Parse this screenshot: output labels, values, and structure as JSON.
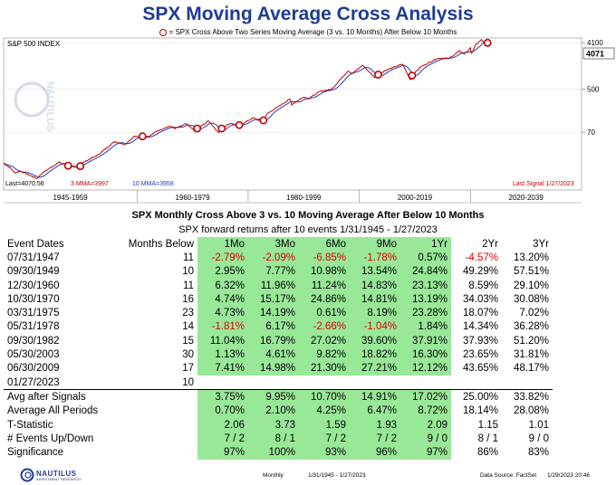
{
  "title": "SPX Moving Average Cross Analysis",
  "legend_text": "= SPX  Cross Above Two Series Moving Average (3 vs. 10 Months) After Below 10 Months",
  "panel_label": "S&P 500 INDEX",
  "last_value_box": "4071",
  "bottom_left_text": "Last=4070.56",
  "mma3_text": "3 MMA=3997",
  "mma10_text": "10 MMA=3958",
  "last_signal_text": "Last Signal 1/27/2023",
  "watermark": "NAUTILUS",
  "colors": {
    "title": "#1f3c93",
    "price": "#c00000",
    "ma": "#1f3cbb",
    "signal": "#c00000",
    "highlight": "#98e898",
    "negative": "#e00000"
  },
  "chart_data": {
    "type": "line",
    "y_scale": "log",
    "y_ticks": [
      "70",
      "500",
      "4100"
    ],
    "x_ticks": [
      "1945-1959",
      "1960-1979",
      "1980-1999",
      "2000-2019",
      "2020-2039"
    ],
    "x_range": [
      1936,
      2040
    ],
    "y_range": [
      9,
      4300
    ],
    "series": [
      {
        "x": [
          1936,
          1937.2,
          1938,
          1939,
          1942,
          1943,
          1946,
          1947.5,
          1949,
          1950,
          1953,
          1956,
          1957.8,
          1959.5,
          1960.9,
          1962.4,
          1963,
          1966,
          1966.8,
          1968.9,
          1970.4,
          1972.9,
          1974.7,
          1975.2,
          1976.9,
          1978.2,
          1980.9,
          1982.5,
          1983.5,
          1987.6,
          1987.8,
          1990,
          1990.8,
          1993,
          1995,
          1998,
          1998.7,
          2000.6,
          2002.8,
          2003.4,
          2004.5,
          2007.8,
          2009.2,
          2009.5,
          2011,
          2014,
          2015.6,
          2016,
          2018,
          2018.9,
          2020,
          2020.2,
          2021,
          2022,
          2022.8,
          2023.1
        ],
        "values": [
          17,
          14,
          11,
          12,
          8.5,
          11,
          18,
          15,
          14,
          17,
          25,
          46,
          40,
          58,
          55,
          59,
          68,
          92,
          82,
          104,
          75,
          118,
          68,
          84,
          106,
          92,
          135,
          110,
          164,
          320,
          245,
          350,
          320,
          450,
          490,
          1150,
          1000,
          1470,
          840,
          920,
          1140,
          1550,
          750,
          920,
          1350,
          2000,
          2050,
          1950,
          2800,
          2450,
          3200,
          2500,
          3750,
          4700,
          3700,
          4070
        ]
      }
    ],
    "signals": [
      {
        "x": 1947.6,
        "y": 15.3
      },
      {
        "x": 1949.8,
        "y": 15
      },
      {
        "x": 1960.99,
        "y": 58
      },
      {
        "x": 1970.83,
        "y": 83
      },
      {
        "x": 1975.25,
        "y": 83
      },
      {
        "x": 1978.4,
        "y": 97
      },
      {
        "x": 1982.75,
        "y": 120
      },
      {
        "x": 2003.4,
        "y": 960
      },
      {
        "x": 2009.5,
        "y": 920
      },
      {
        "x": 2023.08,
        "y": 4071
      }
    ]
  },
  "table": {
    "subtitle1": "SPX Monthly Cross Above 3 vs. 10  Moving Average After Below 10 Months",
    "subtitle2": "SPX forward returns after 10 events 1/31/1945 - 1/27/2023",
    "headers": [
      "Event Dates",
      "Months Below",
      "1Mo",
      "3Mo",
      "6Mo",
      "9Mo",
      "1Yr",
      "2Yr",
      "3Yr"
    ],
    "rows": [
      [
        "07/31/1947",
        "11",
        "-2.79%",
        "-2.09%",
        "-6.85%",
        "-1.78%",
        "0.57%",
        "-4.57%",
        "13.20%"
      ],
      [
        "09/30/1949",
        "10",
        "2.95%",
        "7.77%",
        "10.98%",
        "13.54%",
        "24.84%",
        "49.29%",
        "57.51%"
      ],
      [
        "12/30/1960",
        "11",
        "6.32%",
        "11.96%",
        "11.24%",
        "14.83%",
        "23.13%",
        "8.59%",
        "29.10%"
      ],
      [
        "10/30/1970",
        "16",
        "4.74%",
        "15.17%",
        "24.86%",
        "14.81%",
        "13.19%",
        "34.03%",
        "30.08%"
      ],
      [
        "03/31/1975",
        "23",
        "4.73%",
        "14.19%",
        "0.61%",
        "8.19%",
        "23.28%",
        "18.07%",
        "7.02%"
      ],
      [
        "05/31/1978",
        "14",
        "-1.81%",
        "6.17%",
        "-2.66%",
        "-1.04%",
        "1.84%",
        "14.34%",
        "36.28%"
      ],
      [
        "09/30/1982",
        "15",
        "11.04%",
        "16.79%",
        "27.02%",
        "39.60%",
        "37.91%",
        "37.93%",
        "51.20%"
      ],
      [
        "05/30/2003",
        "30",
        "1.13%",
        "4.61%",
        "9.82%",
        "18.82%",
        "16.30%",
        "23.65%",
        "31.81%"
      ],
      [
        "06/30/2009",
        "17",
        "7.41%",
        "14.98%",
        "21.30%",
        "27.21%",
        "12.12%",
        "43.65%",
        "48.17%"
      ],
      [
        "01/27/2023",
        "10",
        "",
        "",
        "",
        "",
        "",
        "",
        ""
      ]
    ],
    "summary": [
      [
        "Avg after Signals",
        "",
        "3.75%",
        "9.95%",
        "10.70%",
        "14.91%",
        "17.02%",
        "25.00%",
        "33.82%"
      ],
      [
        "Average All Periods",
        "",
        "0.70%",
        "2.10%",
        "4.25%",
        "6.47%",
        "8.72%",
        "18.14%",
        "28.08%"
      ],
      [
        "T-Statistic",
        "",
        "2.06",
        "3.73",
        "1.59",
        "1.93",
        "2.09",
        "1.15",
        "1.01"
      ],
      [
        "# Events Up/Down",
        "",
        "7 / 2",
        "8 / 1",
        "7 / 2",
        "7 / 2",
        "9 / 0",
        "8 / 1",
        "9 / 0"
      ],
      [
        "Significance",
        "",
        "97%",
        "100%",
        "93%",
        "96%",
        "97%",
        "86%",
        "83%"
      ]
    ]
  },
  "footer": {
    "logo": "NAUTILUS",
    "logo_sub": "INVESTMENT RESEARCH",
    "periodicity": "Monthly",
    "range": "1/31/1945 - 1/27/2023",
    "source": "Data Source: FactSet",
    "timestamp": "1/29/2023 20:46"
  }
}
